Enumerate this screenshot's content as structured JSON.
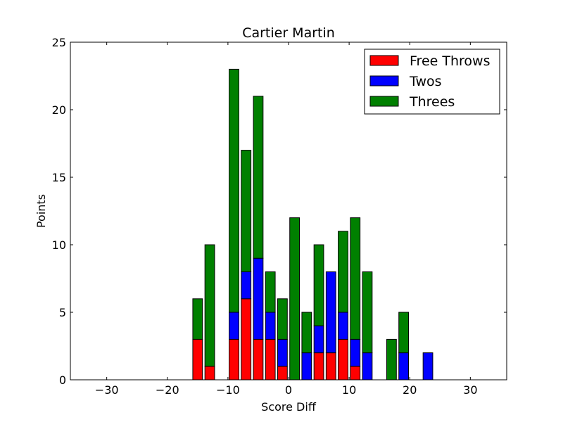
{
  "chart_data": {
    "type": "bar",
    "stacked": true,
    "title": "Cartier Martin",
    "xlabel": "Score Diff",
    "ylabel": "Points",
    "xlim": [
      -36,
      36
    ],
    "ylim": [
      0,
      25
    ],
    "xticks": [
      -30,
      -20,
      -10,
      0,
      10,
      20,
      30
    ],
    "xtick_labels": [
      "−30",
      "−20",
      "−10",
      "0",
      "10",
      "20",
      "30"
    ],
    "yticks": [
      0,
      5,
      10,
      15,
      20,
      25
    ],
    "ytick_labels": [
      "0",
      "5",
      "10",
      "15",
      "20",
      "25"
    ],
    "bar_width": 1.6,
    "x": [
      -15,
      -13,
      -11,
      -9,
      -7,
      -5,
      -3,
      -1,
      1,
      3,
      5,
      7,
      9,
      11,
      13,
      15,
      17,
      19,
      21,
      23
    ],
    "series": [
      {
        "name": "Free Throws",
        "color": "#ff0000",
        "values": [
          3,
          1,
          0,
          3,
          6,
          3,
          3,
          1,
          0,
          0,
          2,
          2,
          3,
          1,
          0,
          0,
          0,
          0,
          0,
          0
        ]
      },
      {
        "name": "Twos",
        "color": "#0000ff",
        "values": [
          0,
          0,
          0,
          2,
          2,
          6,
          2,
          2,
          0,
          2,
          2,
          6,
          2,
          2,
          2,
          0,
          0,
          2,
          0,
          2
        ]
      },
      {
        "name": "Threes",
        "color": "#008000",
        "values": [
          3,
          9,
          0,
          18,
          9,
          12,
          3,
          3,
          12,
          3,
          6,
          0,
          6,
          9,
          6,
          0,
          3,
          3,
          0,
          0
        ]
      }
    ],
    "legend_position": "top-right",
    "grid": false
  }
}
